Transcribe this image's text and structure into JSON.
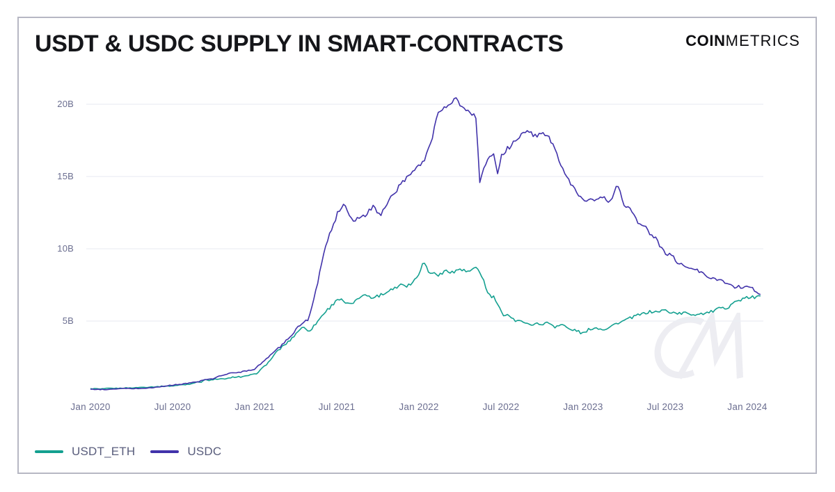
{
  "card": {
    "title": "USDT & USDC SUPPLY IN SMART-CONTRACTS",
    "logo": {
      "bold": "COIN",
      "light": "METRICS"
    },
    "watermark": "CM"
  },
  "chart_data": {
    "type": "line",
    "title": "USDT & USDC SUPPLY IN SMART-CONTRACTS",
    "xlabel": "",
    "ylabel": "",
    "unit": "billions of USD",
    "x_unit": "decimal_year",
    "x_range": [
      2020.0,
      2024.08
    ],
    "ylim": [
      0,
      21
    ],
    "grid": "horizontal-only",
    "legend_position": "bottom-left",
    "x_ticks": [
      {
        "value": 2020.0,
        "label": "Jan 2020"
      },
      {
        "value": 2020.5,
        "label": "Jul 2020"
      },
      {
        "value": 2021.0,
        "label": "Jan 2021"
      },
      {
        "value": 2021.5,
        "label": "Jul 2021"
      },
      {
        "value": 2022.0,
        "label": "Jan 2022"
      },
      {
        "value": 2022.5,
        "label": "Jul 2022"
      },
      {
        "value": 2023.0,
        "label": "Jan 2023"
      },
      {
        "value": 2023.5,
        "label": "Jul 2023"
      },
      {
        "value": 2024.0,
        "label": "Jan 2024"
      }
    ],
    "y_ticks": [
      {
        "value": 5,
        "label": "5B"
      },
      {
        "value": 10,
        "label": "10B"
      },
      {
        "value": 15,
        "label": "15B"
      },
      {
        "value": 20,
        "label": "20B"
      }
    ],
    "series": [
      {
        "name": "USDT_ETH",
        "color": "#14a090",
        "points": [
          [
            2020.0,
            0.3
          ],
          [
            2020.17,
            0.34
          ],
          [
            2020.33,
            0.4
          ],
          [
            2020.5,
            0.5
          ],
          [
            2020.58,
            0.62
          ],
          [
            2020.67,
            0.78
          ],
          [
            2020.7,
            1.0
          ],
          [
            2020.72,
            0.85
          ],
          [
            2020.75,
            0.95
          ],
          [
            2020.83,
            1.05
          ],
          [
            2020.92,
            1.15
          ],
          [
            2021.0,
            1.3
          ],
          [
            2021.08,
            2.1
          ],
          [
            2021.17,
            3.3
          ],
          [
            2021.21,
            3.6
          ],
          [
            2021.25,
            4.1
          ],
          [
            2021.29,
            4.6
          ],
          [
            2021.33,
            4.3
          ],
          [
            2021.38,
            5.0
          ],
          [
            2021.42,
            5.6
          ],
          [
            2021.46,
            6.0
          ],
          [
            2021.5,
            6.5
          ],
          [
            2021.54,
            6.4
          ],
          [
            2021.58,
            6.2
          ],
          [
            2021.63,
            6.5
          ],
          [
            2021.67,
            6.9
          ],
          [
            2021.71,
            6.7
          ],
          [
            2021.75,
            6.6
          ],
          [
            2021.79,
            7.0
          ],
          [
            2021.83,
            7.3
          ],
          [
            2021.88,
            7.4
          ],
          [
            2021.92,
            7.5
          ],
          [
            2021.96,
            7.7
          ],
          [
            2022.0,
            8.3
          ],
          [
            2022.03,
            9.2
          ],
          [
            2022.06,
            8.4
          ],
          [
            2022.08,
            8.3
          ],
          [
            2022.13,
            8.2
          ],
          [
            2022.17,
            8.5
          ],
          [
            2022.21,
            8.3
          ],
          [
            2022.25,
            8.6
          ],
          [
            2022.29,
            8.4
          ],
          [
            2022.33,
            8.6
          ],
          [
            2022.35,
            8.7
          ],
          [
            2022.38,
            8.2
          ],
          [
            2022.42,
            7.0
          ],
          [
            2022.46,
            6.6
          ],
          [
            2022.5,
            5.7
          ],
          [
            2022.52,
            5.3
          ],
          [
            2022.54,
            5.6
          ],
          [
            2022.58,
            5.1
          ],
          [
            2022.63,
            4.9
          ],
          [
            2022.67,
            4.8
          ],
          [
            2022.71,
            4.9
          ],
          [
            2022.75,
            4.8
          ],
          [
            2022.79,
            4.9
          ],
          [
            2022.83,
            4.6
          ],
          [
            2022.88,
            4.7
          ],
          [
            2022.92,
            4.4
          ],
          [
            2022.96,
            4.3
          ],
          [
            2023.0,
            4.2
          ],
          [
            2023.04,
            4.4
          ],
          [
            2023.08,
            4.5
          ],
          [
            2023.13,
            4.4
          ],
          [
            2023.17,
            4.6
          ],
          [
            2023.21,
            4.8
          ],
          [
            2023.25,
            5.0
          ],
          [
            2023.29,
            5.3
          ],
          [
            2023.33,
            5.4
          ],
          [
            2023.38,
            5.5
          ],
          [
            2023.42,
            5.6
          ],
          [
            2023.46,
            5.6
          ],
          [
            2023.5,
            5.7
          ],
          [
            2023.54,
            5.7
          ],
          [
            2023.58,
            5.6
          ],
          [
            2023.63,
            5.5
          ],
          [
            2023.67,
            5.5
          ],
          [
            2023.71,
            5.5
          ],
          [
            2023.75,
            5.5
          ],
          [
            2023.79,
            5.6
          ],
          [
            2023.83,
            5.8
          ],
          [
            2023.88,
            6.0
          ],
          [
            2023.92,
            6.2
          ],
          [
            2023.96,
            6.4
          ],
          [
            2024.0,
            6.5
          ],
          [
            2024.04,
            6.6
          ],
          [
            2024.08,
            6.9
          ]
        ]
      },
      {
        "name": "USDC",
        "color": "#4132aa",
        "points": [
          [
            2020.0,
            0.25
          ],
          [
            2020.17,
            0.3
          ],
          [
            2020.33,
            0.36
          ],
          [
            2020.5,
            0.55
          ],
          [
            2020.58,
            0.68
          ],
          [
            2020.67,
            0.85
          ],
          [
            2020.75,
            1.05
          ],
          [
            2020.83,
            1.35
          ],
          [
            2020.92,
            1.5
          ],
          [
            2021.0,
            1.7
          ],
          [
            2021.08,
            2.5
          ],
          [
            2021.17,
            3.4
          ],
          [
            2021.25,
            4.4
          ],
          [
            2021.33,
            5.2
          ],
          [
            2021.38,
            7.5
          ],
          [
            2021.42,
            9.8
          ],
          [
            2021.46,
            11.0
          ],
          [
            2021.5,
            12.4
          ],
          [
            2021.54,
            13.2
          ],
          [
            2021.6,
            11.9
          ],
          [
            2021.67,
            12.4
          ],
          [
            2021.72,
            13.0
          ],
          [
            2021.77,
            12.3
          ],
          [
            2021.83,
            13.6
          ],
          [
            2021.92,
            14.8
          ],
          [
            2022.0,
            15.8
          ],
          [
            2022.04,
            16.3
          ],
          [
            2022.08,
            17.6
          ],
          [
            2022.12,
            19.6
          ],
          [
            2022.17,
            19.9
          ],
          [
            2022.21,
            20.4
          ],
          [
            2022.25,
            19.9
          ],
          [
            2022.29,
            19.6
          ],
          [
            2022.33,
            19.2
          ],
          [
            2022.35,
            18.9
          ],
          [
            2022.37,
            14.7
          ],
          [
            2022.42,
            16.4
          ],
          [
            2022.46,
            16.6
          ],
          [
            2022.48,
            15.3
          ],
          [
            2022.5,
            16.3
          ],
          [
            2022.54,
            16.9
          ],
          [
            2022.58,
            17.4
          ],
          [
            2022.63,
            17.9
          ],
          [
            2022.67,
            18.1
          ],
          [
            2022.71,
            17.8
          ],
          [
            2022.75,
            18.2
          ],
          [
            2022.79,
            17.6
          ],
          [
            2022.83,
            16.9
          ],
          [
            2022.88,
            15.3
          ],
          [
            2022.92,
            14.5
          ],
          [
            2022.96,
            13.9
          ],
          [
            2023.0,
            13.2
          ],
          [
            2023.04,
            13.4
          ],
          [
            2023.08,
            13.2
          ],
          [
            2023.13,
            13.5
          ],
          [
            2023.17,
            13.2
          ],
          [
            2023.21,
            14.6
          ],
          [
            2023.25,
            13.0
          ],
          [
            2023.29,
            12.7
          ],
          [
            2023.33,
            11.9
          ],
          [
            2023.38,
            11.4
          ],
          [
            2023.42,
            10.9
          ],
          [
            2023.46,
            10.4
          ],
          [
            2023.5,
            9.7
          ],
          [
            2023.54,
            9.3
          ],
          [
            2023.58,
            9.1
          ],
          [
            2023.63,
            8.7
          ],
          [
            2023.67,
            8.6
          ],
          [
            2023.71,
            8.3
          ],
          [
            2023.75,
            8.1
          ],
          [
            2023.79,
            7.9
          ],
          [
            2023.83,
            7.8
          ],
          [
            2023.88,
            7.7
          ],
          [
            2023.92,
            7.5
          ],
          [
            2023.96,
            7.4
          ],
          [
            2024.0,
            7.3
          ],
          [
            2024.04,
            7.2
          ],
          [
            2024.08,
            7.0
          ]
        ]
      }
    ]
  },
  "colors": {
    "usdt_line": "#14a090",
    "usdc_line": "#4132aa",
    "gridline": "#eceef4",
    "axis_text": "#6b6e90",
    "legend_text": "#595d7c",
    "title_text": "#15161a",
    "card_border": "#b6b7c3",
    "watermark": "#ededf2"
  }
}
